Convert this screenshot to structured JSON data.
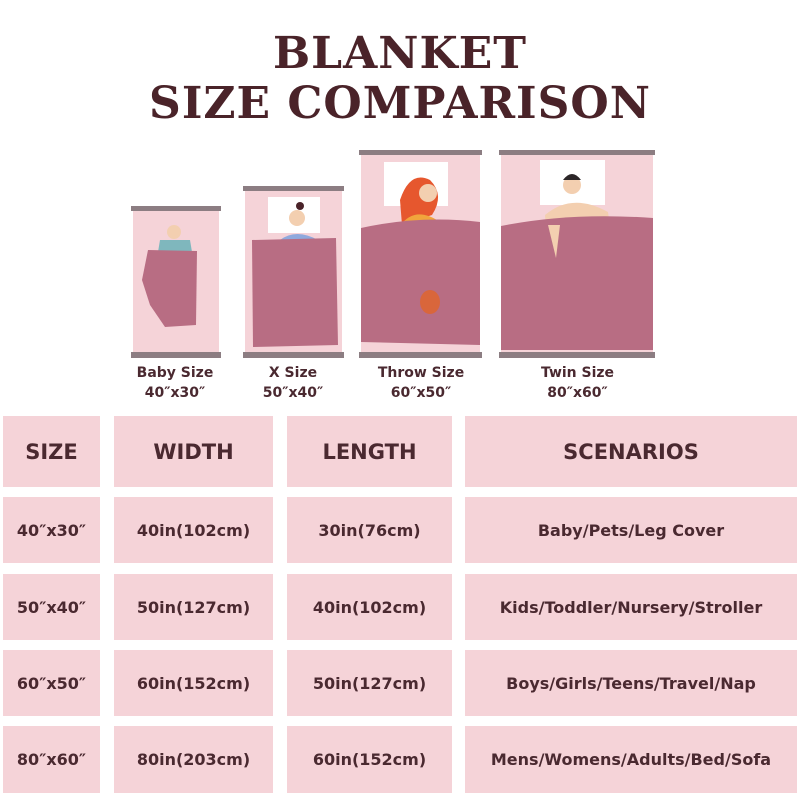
{
  "title": {
    "line1": "BLANKET",
    "line2": "SIZE COMPARISON"
  },
  "colors": {
    "pink": "#f5d3d8",
    "blanket": "#b86d83",
    "bar": "#8c7d82",
    "text": "#4a2930"
  },
  "beds": [
    {
      "name": "Baby Size",
      "dims": "40″x30″"
    },
    {
      "name": "X Size",
      "dims": "50″x40″"
    },
    {
      "name": "Throw Size",
      "dims": "60″x50″"
    },
    {
      "name": "Twin Size",
      "dims": "80″x60″"
    }
  ],
  "table": {
    "headers": [
      "SIZE",
      "WIDTH",
      "LENGTH",
      "SCENARIOS"
    ],
    "rows": [
      [
        "40″x30″",
        "40in(102cm)",
        "30in(76cm)",
        "Baby/Pets/Leg Cover"
      ],
      [
        "50″x40″",
        "50in(127cm)",
        "40in(102cm)",
        "Kids/Toddler/Nursery/Stroller"
      ],
      [
        "60″x50″",
        "60in(152cm)",
        "50in(127cm)",
        "Boys/Girls/Teens/Travel/Nap"
      ],
      [
        "80″x60″",
        "80in(203cm)",
        "60in(152cm)",
        "Mens/Womens/Adults/Bed/Sofa"
      ]
    ]
  }
}
